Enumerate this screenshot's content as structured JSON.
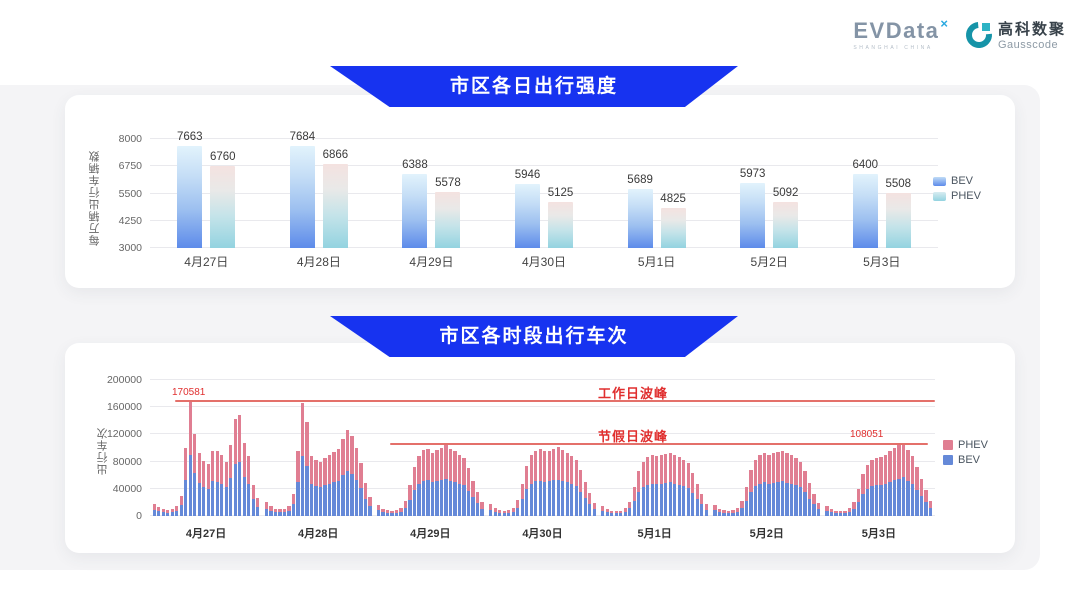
{
  "header": {
    "evdata": {
      "brand": "EVData",
      "superscript": "×",
      "subtext": "SHANGHAI CHINA"
    },
    "gausscode": {
      "cn": "高科数聚",
      "en": "Gausscode"
    }
  },
  "colors": {
    "banner_blue": "#1733f0",
    "bev_gradient_top": "#e2f3fc",
    "bev_gradient_bottom": "#5d8bea",
    "phev_gradient_top": "#f4e2e0",
    "phev_gradient_bottom": "#93d3e0",
    "stacked_phev_pink": "#e07e92",
    "stacked_bev_blue": "#6589d8",
    "annotation_red": "#e02f2f",
    "annotation_line_red": "#e4706a",
    "panel_gray": "#f4f4f6",
    "card_white": "#ffffff"
  },
  "chart_data": [
    {
      "type": "bar",
      "title": "市区各日出行强度",
      "ylabel": "每万辆出行车辆数",
      "ylim": [
        3000,
        8000
      ],
      "yticks": [
        3000,
        4250,
        5500,
        6750,
        8000
      ],
      "grid": true,
      "legend_position": "right",
      "categories": [
        "4月27日",
        "4月28日",
        "4月29日",
        "4月30日",
        "5月1日",
        "5月2日",
        "5月3日"
      ],
      "series": [
        {
          "name": "BEV",
          "values": [
            7663,
            7684,
            6388,
            5946,
            5689,
            5973,
            6400
          ]
        },
        {
          "name": "PHEV",
          "values": [
            6760,
            6866,
            5578,
            5125,
            4825,
            5092,
            5508
          ]
        }
      ],
      "legend": [
        "BEV",
        "PHEV"
      ]
    },
    {
      "type": "stacked-bar",
      "title": "市区各时段出行车次",
      "ylabel": "出行车次",
      "ylim": [
        0,
        200000
      ],
      "yticks": [
        0,
        40000,
        80000,
        120000,
        160000,
        200000
      ],
      "grid": true,
      "legend_position": "right",
      "categories": [
        "4月27日",
        "4月28日",
        "4月29日",
        "4月30日",
        "5月1日",
        "5月2日",
        "5月3日"
      ],
      "hours_per_day": 24,
      "stack_order_bottom_to_top": [
        "BEV",
        "PHEV"
      ],
      "series": [
        {
          "name": "BEV",
          "color": "#6589d8",
          "by_day": [
            [
              9500,
              6900,
              5600,
              4800,
              5300,
              7400,
              15900,
              53000,
              90400,
              63600,
              48800,
              42900,
              40300,
              50900,
              50400,
              47700,
              42400,
              55700,
              75800,
              79000,
              57200,
              46600,
              24400,
              13800
            ],
            [
              10600,
              7400,
              5800,
              5300,
              5800,
              8000,
              17000,
              50400,
              88000,
              73700,
              46600,
              43500,
              42400,
              45600,
              47700,
              49800,
              51900,
              59900,
              66800,
              62500,
              53000,
              41300,
              25400,
              14800
            ],
            [
              8500,
              5800,
              4500,
              4000,
              4500,
              6400,
              11700,
              23900,
              38200,
              46600,
              51400,
              52500,
              49300,
              51400,
              53000,
              55100,
              51900,
              50400,
              47700,
              45100,
              37100,
              27600,
              18600,
              10600
            ],
            [
              9000,
              6400,
              4800,
              4200,
              4800,
              6600,
              12200,
              24900,
              39200,
              47700,
              50900,
              51900,
              50400,
              50900,
              52500,
              53500,
              51400,
              49300,
              46600,
              43500,
              36000,
              26500,
              18000,
              10100
            ],
            [
              8000,
              5600,
              4200,
              3700,
              4200,
              6100,
              11100,
              22300,
              35000,
              42400,
              46100,
              47700,
              46600,
              47200,
              48200,
              49300,
              47700,
              46100,
              44000,
              41300,
              33900,
              24900,
              17000,
              9500
            ],
            [
              8200,
              5800,
              4300,
              3800,
              4300,
              6300,
              11400,
              22800,
              36000,
              44000,
              47700,
              49300,
              47700,
              48800,
              49800,
              50900,
              48800,
              47200,
              45100,
              42400,
              35000,
              25400,
              17500,
              9800
            ],
            [
              7400,
              5300,
              4200,
              3700,
              4200,
              6400,
              10600,
              21200,
              32900,
              39800,
              43500,
              45100,
              46100,
              47700,
              50400,
              53000,
              55100,
              57300,
              51400,
              46600,
              38200,
              29200,
              20100,
              11700
            ]
          ]
        },
        {
          "name": "PHEV",
          "color": "#e07e92",
          "by_day": [
            [
              8500,
              6100,
              4900,
              4200,
              4700,
              6600,
              14100,
              47000,
              80181,
              56400,
              43200,
              38100,
              35700,
              45100,
              44600,
              42300,
              37600,
              49300,
              67200,
              70000,
              50800,
              41400,
              21600,
              12200
            ],
            [
              9400,
              6600,
              5200,
              4700,
              5200,
              7000,
              15000,
              44600,
              78000,
              65300,
              41400,
              38500,
              37600,
              40400,
              42300,
              44200,
              46100,
              53100,
              59200,
              55500,
              47000,
              36700,
              22600,
              13200
            ],
            [
              7500,
              5200,
              4000,
              3500,
              4000,
              5600,
              10300,
              21100,
              33800,
              41400,
              45600,
              46500,
              43700,
              45600,
              47000,
              48900,
              46100,
              44600,
              42300,
              39900,
              32900,
              24400,
              16400,
              9400
            ],
            [
              8000,
              5600,
              4200,
              3800,
              4200,
              5900,
              10800,
              22100,
              34800,
              42300,
              45100,
              46100,
              44600,
              45100,
              46500,
              47500,
              45600,
              43700,
              41400,
              38500,
              32000,
              23500,
              16000,
              8900
            ],
            [
              7000,
              4900,
              3800,
              3300,
              3800,
              5400,
              9900,
              19700,
              31000,
              37600,
              40900,
              42300,
              41400,
              41800,
              42800,
              43700,
              42300,
              40900,
              39000,
              36700,
              30100,
              22100,
              15000,
              8500
            ],
            [
              7300,
              5200,
              3900,
              3400,
              3900,
              5500,
              10100,
              20200,
              32000,
              39000,
              42300,
              43700,
              42300,
              43200,
              44200,
              45100,
              43200,
              41800,
              39900,
              37600,
              31000,
              22600,
              15500,
              8700
            ],
            [
              6600,
              4700,
              3800,
              3300,
              3800,
              5600,
              9400,
              18800,
              29100,
              35200,
              38500,
              39900,
              40900,
              42300,
              44600,
              47000,
              48900,
              50751,
              45600,
              41400,
              33800,
              25800,
              17900,
              10300
            ]
          ]
        }
      ],
      "annotations": {
        "workday_peak": {
          "label": "工作日波峰",
          "value": 170581,
          "value_label": "170581"
        },
        "holiday_peak": {
          "label": "节假日波峰",
          "value": 108051,
          "value_label": "108051"
        }
      },
      "legend": [
        "PHEV",
        "BEV"
      ]
    }
  ]
}
